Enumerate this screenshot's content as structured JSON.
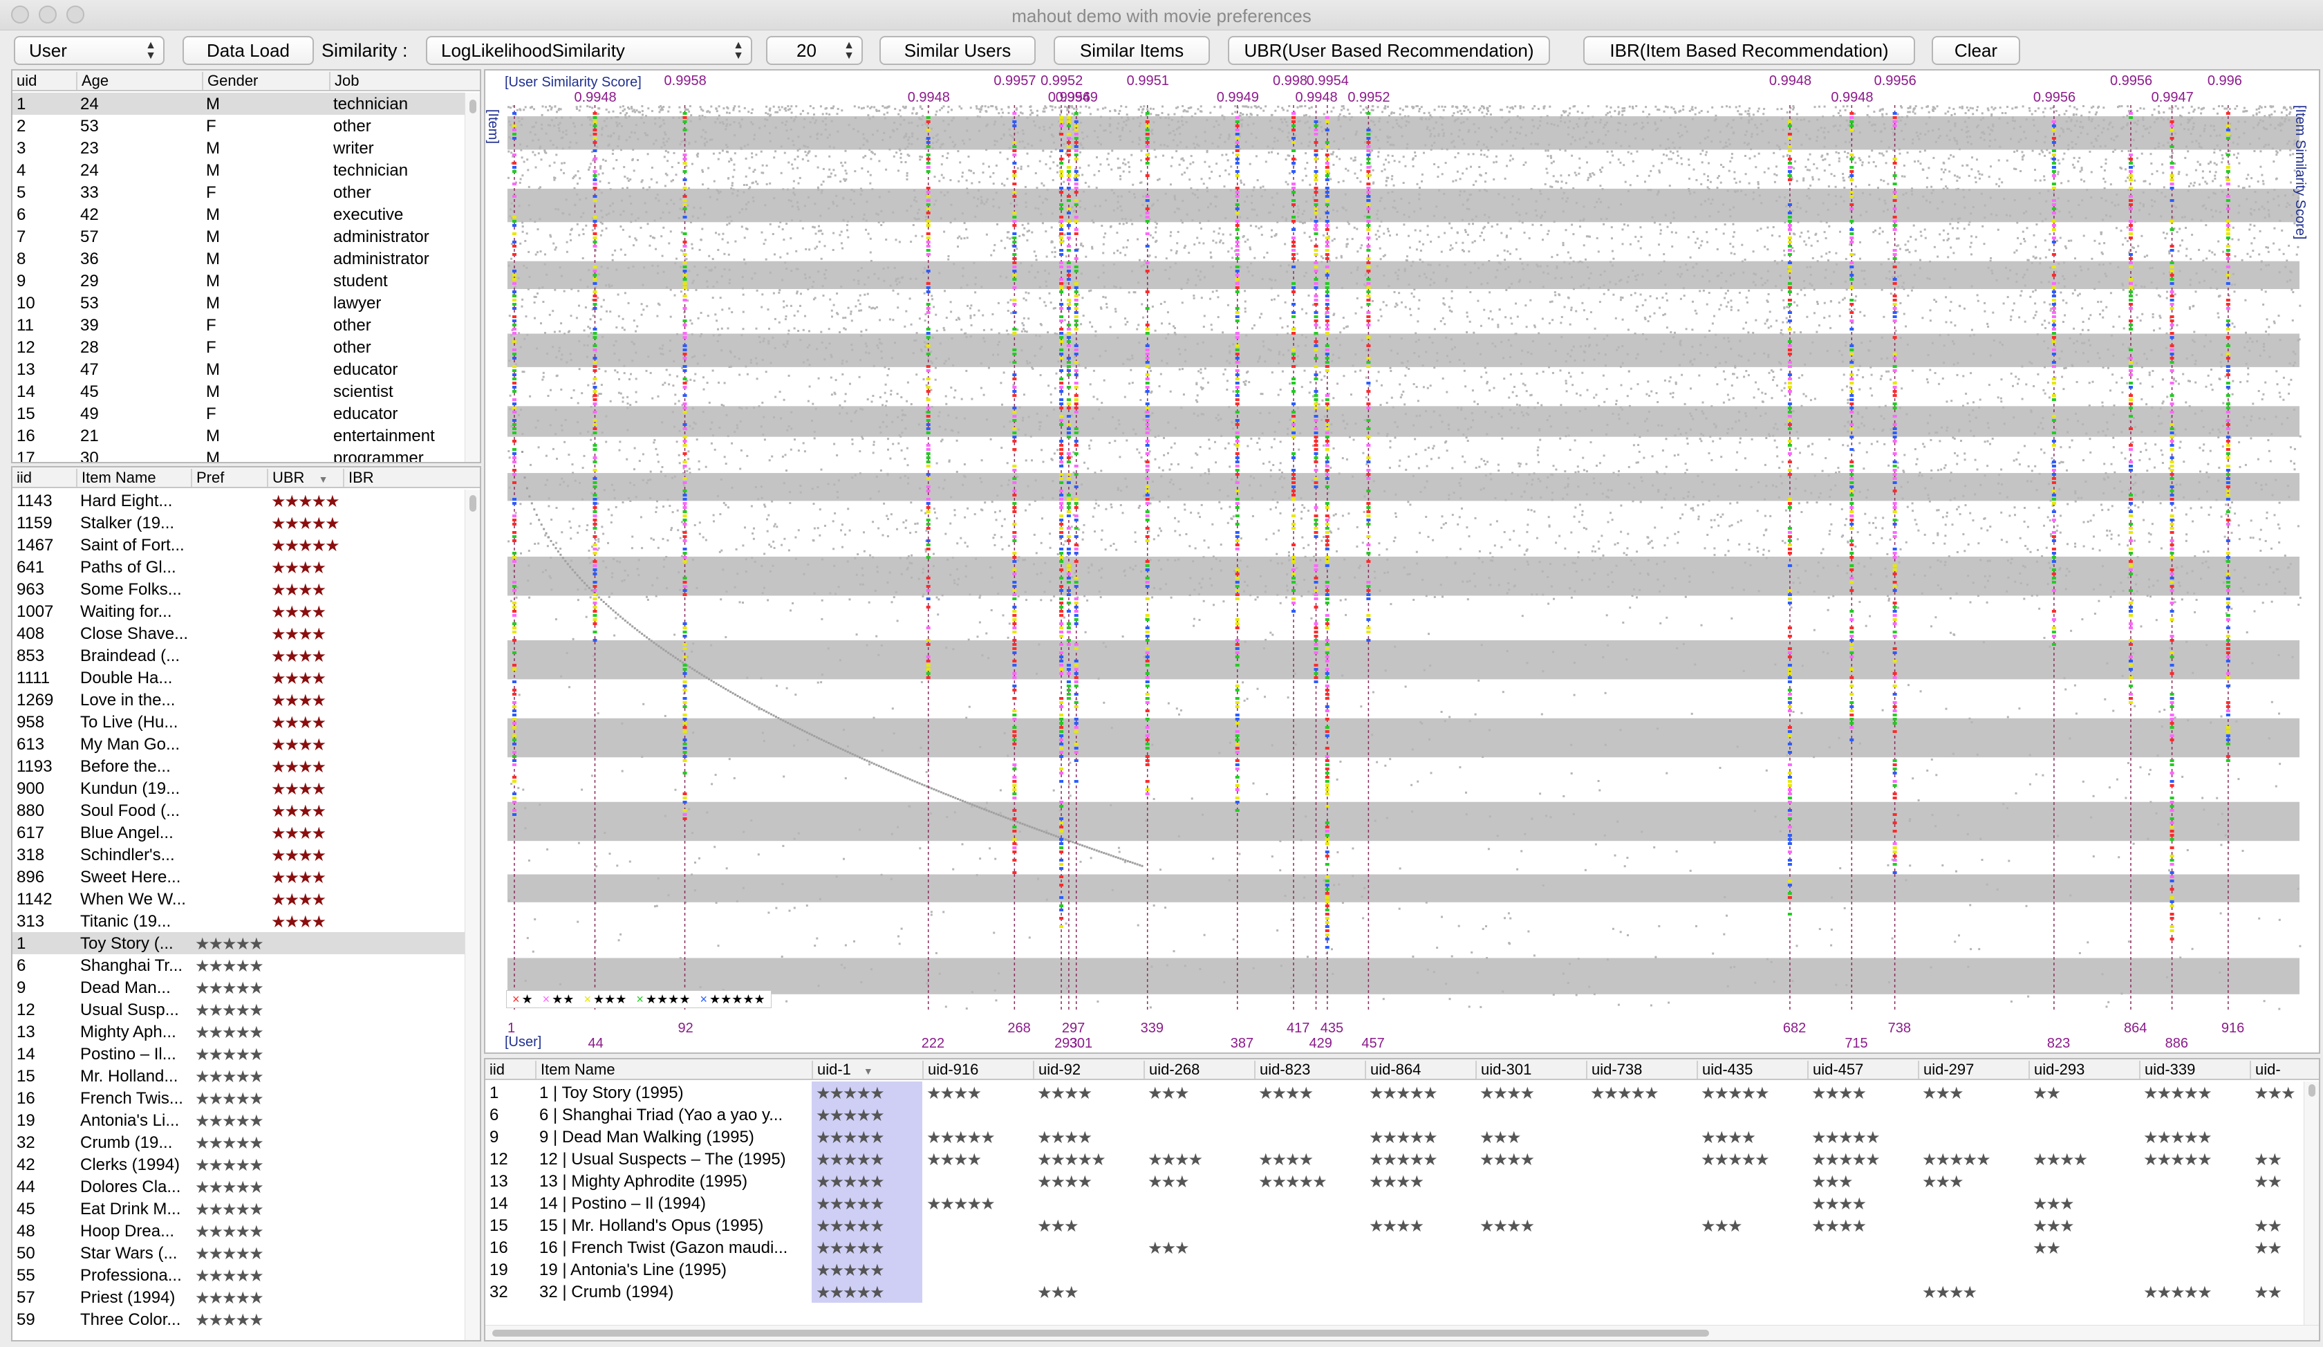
{
  "window": {
    "title": "mahout demo with movie preferences"
  },
  "toolbar": {
    "mode_select": "User",
    "data_load": "Data Load",
    "similarity_label": "Similarity :",
    "similarity_select": "LogLikelihoodSimilarity",
    "count_select": "20",
    "similar_users": "Similar Users",
    "similar_items": "Similar Items",
    "ubr": "UBR(User Based Recommendation)",
    "ibr": "IBR(Item Based Recommendation)",
    "clear": "Clear"
  },
  "users_table": {
    "columns": [
      "uid",
      "Age",
      "Gender",
      "Job"
    ],
    "rows": [
      [
        "1",
        "24",
        "M",
        "technician"
      ],
      [
        "2",
        "53",
        "F",
        "other"
      ],
      [
        "3",
        "23",
        "M",
        "writer"
      ],
      [
        "4",
        "24",
        "M",
        "technician"
      ],
      [
        "5",
        "33",
        "F",
        "other"
      ],
      [
        "6",
        "42",
        "M",
        "executive"
      ],
      [
        "7",
        "57",
        "M",
        "administrator"
      ],
      [
        "8",
        "36",
        "M",
        "administrator"
      ],
      [
        "9",
        "29",
        "M",
        "student"
      ],
      [
        "10",
        "53",
        "M",
        "lawyer"
      ],
      [
        "11",
        "39",
        "F",
        "other"
      ],
      [
        "12",
        "28",
        "F",
        "other"
      ],
      [
        "13",
        "47",
        "M",
        "educator"
      ],
      [
        "14",
        "45",
        "M",
        "scientist"
      ],
      [
        "15",
        "49",
        "F",
        "educator"
      ],
      [
        "16",
        "21",
        "M",
        "entertainment"
      ],
      [
        "17",
        "30",
        "M",
        "programmer"
      ]
    ],
    "selected_row": 0
  },
  "items_table": {
    "columns": [
      "iid",
      "Item Name",
      "Pref",
      "UBR",
      "IBR"
    ],
    "sort_indicator": "▼",
    "rows": [
      [
        "1143",
        "Hard Eight...",
        "",
        "★★★★★",
        ""
      ],
      [
        "1159",
        "Stalker (19...",
        "",
        "★★★★★",
        ""
      ],
      [
        "1467",
        "Saint of Fort...",
        "",
        "★★★★★",
        ""
      ],
      [
        "641",
        "Paths of Gl...",
        "",
        "★★★★",
        ""
      ],
      [
        "963",
        "Some Folks...",
        "",
        "★★★★",
        ""
      ],
      [
        "1007",
        "Waiting for...",
        "",
        "★★★★",
        ""
      ],
      [
        "408",
        "Close Shave...",
        "",
        "★★★★",
        ""
      ],
      [
        "853",
        "Braindead (...",
        "",
        "★★★★",
        ""
      ],
      [
        "1111",
        "Double Ha...",
        "",
        "★★★★",
        ""
      ],
      [
        "1269",
        "Love in the...",
        "",
        "★★★★",
        ""
      ],
      [
        "958",
        "To Live (Hu...",
        "",
        "★★★★",
        ""
      ],
      [
        "613",
        "My Man Go...",
        "",
        "★★★★",
        ""
      ],
      [
        "1193",
        "Before the...",
        "",
        "★★★★",
        ""
      ],
      [
        "900",
        "Kundun (19...",
        "",
        "★★★★",
        ""
      ],
      [
        "880",
        "Soul Food (...",
        "",
        "★★★★",
        ""
      ],
      [
        "617",
        "Blue Angel...",
        "",
        "★★★★",
        ""
      ],
      [
        "318",
        "Schindler's...",
        "",
        "★★★★",
        ""
      ],
      [
        "896",
        "Sweet Here...",
        "",
        "★★★★",
        ""
      ],
      [
        "1142",
        "When We W...",
        "",
        "★★★★",
        ""
      ],
      [
        "313",
        "Titanic (19...",
        "",
        "★★★★",
        ""
      ],
      [
        "1",
        "Toy Story (...",
        "★★★★★",
        "",
        ""
      ],
      [
        "6",
        "Shanghai Tr...",
        "★★★★★",
        "",
        ""
      ],
      [
        "9",
        "Dead Man...",
        "★★★★★",
        "",
        ""
      ],
      [
        "12",
        "Usual Susp...",
        "★★★★★",
        "",
        ""
      ],
      [
        "13",
        "Mighty Aph...",
        "★★★★★",
        "",
        ""
      ],
      [
        "14",
        "Postino – Il...",
        "★★★★★",
        "",
        ""
      ],
      [
        "15",
        "Mr. Holland...",
        "★★★★★",
        "",
        ""
      ],
      [
        "16",
        "French Twis...",
        "★★★★★",
        "",
        ""
      ],
      [
        "19",
        "Antonia's Li...",
        "★★★★★",
        "",
        ""
      ],
      [
        "32",
        "Crumb (19...",
        "★★★★★",
        "",
        ""
      ],
      [
        "42",
        "Clerks (1994)",
        "★★★★★",
        "",
        ""
      ],
      [
        "44",
        "Dolores Cla...",
        "★★★★★",
        "",
        ""
      ],
      [
        "45",
        "Eat Drink M...",
        "★★★★★",
        "",
        ""
      ],
      [
        "48",
        "Hoop Drea...",
        "★★★★★",
        "",
        ""
      ],
      [
        "50",
        "Star Wars (...",
        "★★★★★",
        "",
        ""
      ],
      [
        "55",
        "Professiona...",
        "★★★★★",
        "",
        ""
      ],
      [
        "57",
        "Priest (1994)",
        "★★★★★",
        "",
        ""
      ],
      [
        "59",
        "Three Color...",
        "★★★★★",
        "",
        ""
      ]
    ],
    "selected_row": 20
  },
  "viz": {
    "user_similarity_label": "[User Similarity Score]",
    "item_label": "[Item]",
    "item_similarity_label": "[Item Similarity Score]",
    "user_label": "[User]",
    "legend": [
      "★",
      "★★",
      "★★★",
      "★★★★",
      "★★★★★"
    ],
    "legend_colors": [
      "#ff2a2a",
      "#ff66ff",
      "#e8e800",
      "#22cc22",
      "#2a5cff"
    ],
    "similar_users": [
      {
        "uid": "1",
        "score": "",
        "upper": ""
      },
      {
        "uid": "44",
        "score": "0.9948",
        "upper": "low"
      },
      {
        "uid": "92",
        "score": "0.9958",
        "upper": "high"
      },
      {
        "uid": "222",
        "score": "0.9948",
        "upper": "mid"
      },
      {
        "uid": "268",
        "score": "0.9957",
        "upper": "high"
      },
      {
        "uid": "293",
        "score": "0.9952",
        "upper": "high"
      },
      {
        "uid": "297",
        "score": "0.9956",
        "upper": "mid"
      },
      {
        "uid": "301",
        "score": "0.9949",
        "upper": "mid"
      },
      {
        "uid": "339",
        "score": "0.9951",
        "upper": "high"
      },
      {
        "uid": "387",
        "score": "0.9949",
        "upper": "mid"
      },
      {
        "uid": "417",
        "score": "0.998",
        "upper": "high"
      },
      {
        "uid": "429",
        "score": "0.9948",
        "upper": "mid"
      },
      {
        "uid": "435",
        "score": "0.9954",
        "upper": "high"
      },
      {
        "uid": "457",
        "score": "0.9952",
        "upper": "mid"
      },
      {
        "uid": "682",
        "score": "0.9948",
        "upper": "high"
      },
      {
        "uid": "715",
        "score": "0.9948",
        "upper": "mid"
      },
      {
        "uid": "738",
        "score": "0.9956",
        "upper": "high"
      },
      {
        "uid": "823",
        "score": "0.9956",
        "upper": "mid"
      },
      {
        "uid": "864",
        "score": "0.9956",
        "upper": "high"
      },
      {
        "uid": "886",
        "score": "0.9947",
        "upper": "mid"
      },
      {
        "uid": "916",
        "score": "0.996",
        "upper": "high"
      }
    ]
  },
  "matrix": {
    "columns": [
      "iid",
      "Item Name",
      "uid-1",
      "uid-916",
      "uid-92",
      "uid-268",
      "uid-823",
      "uid-864",
      "uid-301",
      "uid-738",
      "uid-435",
      "uid-457",
      "uid-297",
      "uid-293",
      "uid-339",
      "uid-"
    ],
    "sort_indicator": "▼",
    "rows": [
      [
        "1",
        "1 | Toy Story (1995)",
        "★★★★★",
        "★★★★",
        "★★★★",
        "★★★",
        "★★★★",
        "★★★★★",
        "★★★★",
        "★★★★★",
        "★★★★★",
        "★★★★",
        "★★★",
        "★★",
        "★★★★★",
        "★★★"
      ],
      [
        "6",
        "6 | Shanghai Triad (Yao a yao y...",
        "★★★★★",
        "",
        "",
        "",
        "",
        "",
        "",
        "",
        "",
        "",
        "",
        "",
        "",
        ""
      ],
      [
        "9",
        "9 | Dead Man Walking (1995)",
        "★★★★★",
        "★★★★★",
        "★★★★",
        "",
        "",
        "★★★★★",
        "★★★",
        "",
        "★★★★",
        "★★★★★",
        "",
        "",
        "★★★★★",
        ""
      ],
      [
        "12",
        "12 | Usual Suspects – The (1995)",
        "★★★★★",
        "★★★★",
        "★★★★★",
        "★★★★",
        "★★★★",
        "★★★★★",
        "★★★★",
        "",
        "★★★★★",
        "★★★★★",
        "★★★★★",
        "★★★★",
        "★★★★★",
        "★★"
      ],
      [
        "13",
        "13 | Mighty Aphrodite (1995)",
        "★★★★★",
        "",
        "★★★★",
        "★★★",
        "★★★★★",
        "★★★★",
        "",
        "",
        "",
        "★★★",
        "★★★",
        "",
        "",
        "★★"
      ],
      [
        "14",
        "14 | Postino – Il (1994)",
        "★★★★★",
        "★★★★★",
        "",
        "",
        "",
        "",
        "",
        "",
        "",
        "★★★★",
        "",
        "★★★",
        "",
        ""
      ],
      [
        "15",
        "15 | Mr. Holland's Opus (1995)",
        "★★★★★",
        "",
        "★★★",
        "",
        "",
        "★★★★",
        "★★★★",
        "",
        "★★★",
        "★★★★",
        "",
        "★★★",
        "",
        "★★"
      ],
      [
        "16",
        "16 | French Twist (Gazon maudi...",
        "★★★★★",
        "",
        "",
        "★★★",
        "",
        "",
        "",
        "",
        "",
        "",
        "",
        "★★",
        "",
        "★★"
      ],
      [
        "19",
        "19 | Antonia's Line (1995)",
        "★★★★★",
        "",
        "",
        "",
        "",
        "",
        "",
        "",
        "",
        "",
        "",
        "",
        "",
        ""
      ],
      [
        "32",
        "32 | Crumb (1994)",
        "★★★★★",
        "",
        "★★★",
        "",
        "",
        "",
        "",
        "",
        "",
        "",
        "★★★★",
        "",
        "★★★★★",
        "★★"
      ]
    ]
  }
}
